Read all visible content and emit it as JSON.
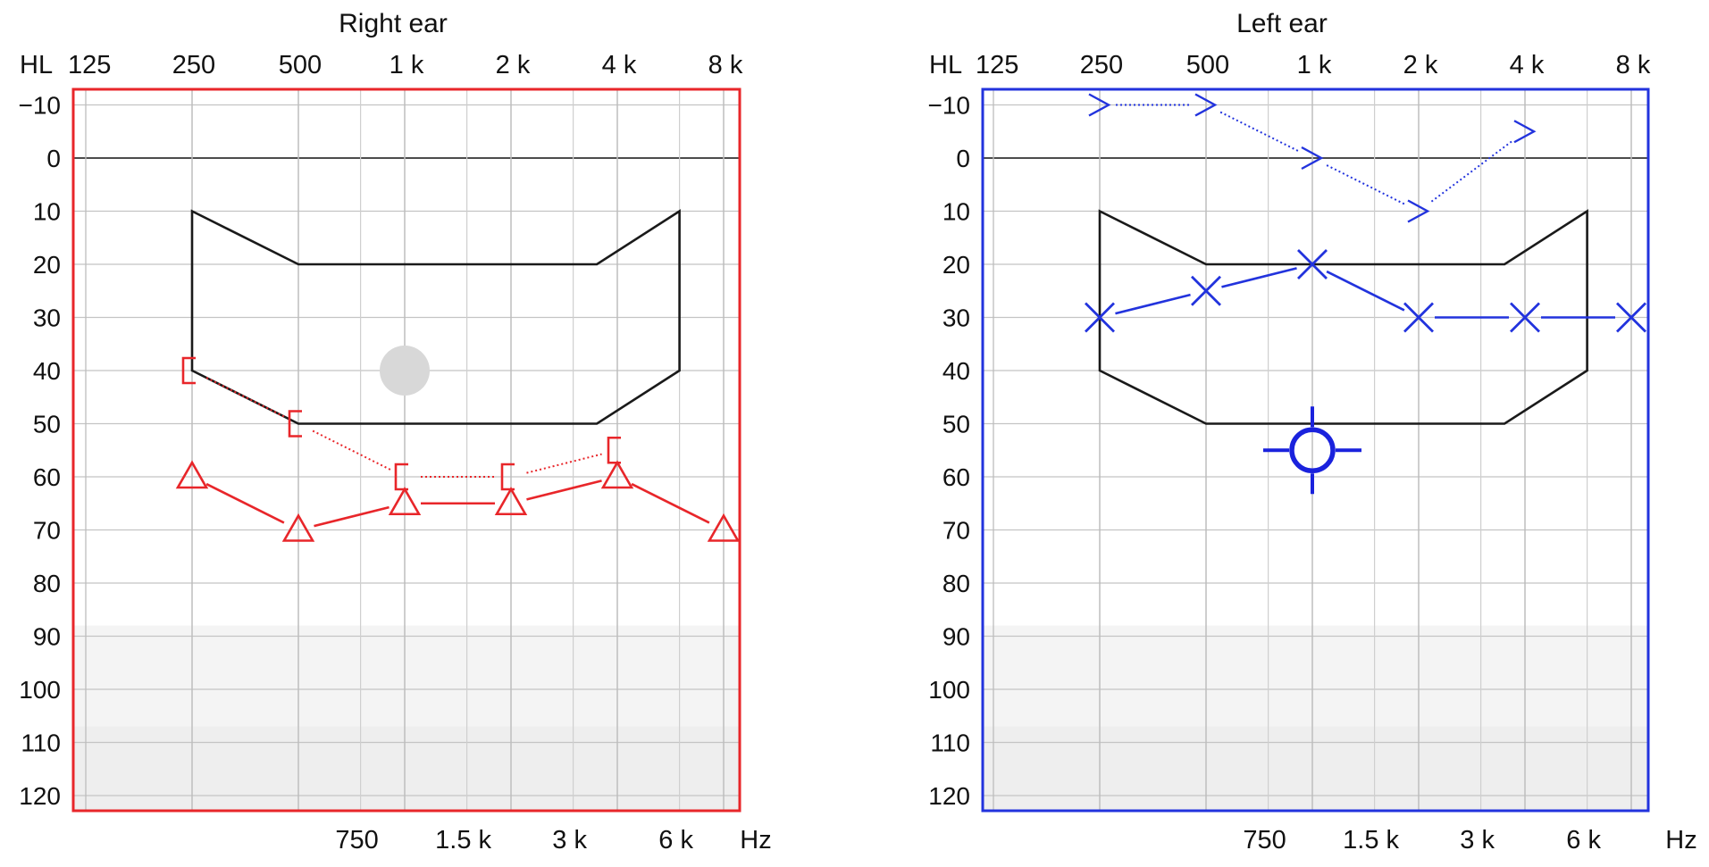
{
  "chart_data": [
    {
      "type": "line",
      "title": "Right ear",
      "color": "#e8262a",
      "x_unit_label": "Hz",
      "y_unit_label": "HL",
      "x_top_ticks": [
        "125",
        "250",
        "500",
        "1 k",
        "2 k",
        "4 k",
        "8 k"
      ],
      "x_bottom_ticks": [
        "750",
        "1.5 k",
        "3 k",
        "6 k"
      ],
      "y_ticks": [
        "−10",
        "0",
        "10",
        "20",
        "30",
        "40",
        "50",
        "60",
        "70",
        "80",
        "90",
        "100",
        "110",
        "120"
      ],
      "ylim": [
        -13,
        123
      ],
      "y_inverted": true,
      "grid": true,
      "speech_banana": [
        [
          250,
          10
        ],
        [
          500,
          20
        ],
        [
          3500,
          20
        ],
        [
          6000,
          10
        ],
        [
          6000,
          40
        ],
        [
          3500,
          50
        ],
        [
          500,
          50
        ],
        [
          250,
          40
        ]
      ],
      "series": [
        {
          "marker": "triangle",
          "style": "solid",
          "x": [
            250,
            500,
            1000,
            2000,
            4000,
            8000
          ],
          "y": [
            60,
            70,
            65,
            65,
            60,
            70
          ]
        },
        {
          "marker": "bracket-right",
          "style": "dotted",
          "x": [
            250,
            500,
            1000,
            2000,
            4000
          ],
          "y": [
            40,
            50,
            60,
            60,
            55
          ]
        }
      ],
      "other_markers": [
        {
          "marker": "filled-circle",
          "x": 1000,
          "y": 40,
          "color": "#d8d8d8"
        }
      ]
    },
    {
      "type": "line",
      "title": "Left ear",
      "color": "#2233dd",
      "x_unit_label": "Hz",
      "y_unit_label": "HL",
      "x_top_ticks": [
        "125",
        "250",
        "500",
        "1 k",
        "2 k",
        "4 k",
        "8 k"
      ],
      "x_bottom_ticks": [
        "750",
        "1.5 k",
        "3 k",
        "6 k"
      ],
      "y_ticks": [
        "−10",
        "0",
        "10",
        "20",
        "30",
        "40",
        "50",
        "60",
        "70",
        "80",
        "90",
        "100",
        "110",
        "120"
      ],
      "ylim": [
        -13,
        123
      ],
      "y_inverted": true,
      "grid": true,
      "speech_banana": [
        [
          250,
          10
        ],
        [
          500,
          20
        ],
        [
          3500,
          20
        ],
        [
          6000,
          10
        ],
        [
          6000,
          40
        ],
        [
          3500,
          50
        ],
        [
          500,
          50
        ],
        [
          250,
          40
        ]
      ],
      "series": [
        {
          "marker": "cross",
          "style": "solid",
          "x": [
            250,
            500,
            1000,
            2000,
            4000,
            8000
          ],
          "y": [
            30,
            25,
            20,
            30,
            30,
            30
          ]
        },
        {
          "marker": "chevron-right",
          "style": "dotted",
          "x": [
            250,
            500,
            1000,
            2000,
            4000
          ],
          "y": [
            -10,
            -10,
            0,
            10,
            -5
          ]
        }
      ],
      "other_markers": [
        {
          "marker": "crosshair-circle",
          "x": 1000,
          "y": 55,
          "color": "#1a22dd"
        }
      ]
    }
  ]
}
